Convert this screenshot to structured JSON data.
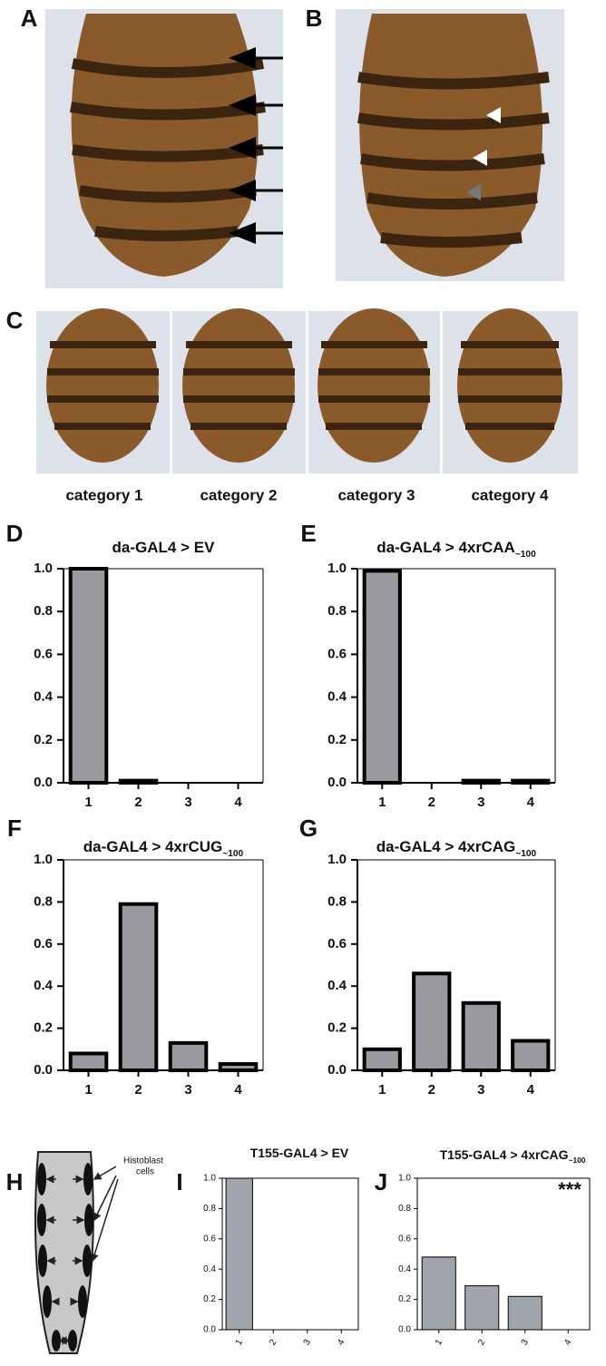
{
  "panel_labels": [
    "A",
    "B",
    "C",
    "D",
    "E",
    "F",
    "G",
    "H",
    "I",
    "J"
  ],
  "photo_captions": [
    "category 1",
    "category 2",
    "category 3",
    "category 4"
  ],
  "diagram_label": [
    "Histoblast",
    "cells"
  ],
  "chart_data": [
    {
      "type": "bar",
      "title": "da-GAL4 > EV",
      "categories": [
        "1",
        "2",
        "3",
        "4"
      ],
      "values": [
        1.0,
        0.01,
        0,
        0
      ],
      "color": "#999aa0",
      "ylim": [
        0,
        1
      ],
      "yticks": [
        {
          "value": 0,
          "label": "0.0"
        },
        0.2,
        0.4,
        0.6,
        0.8,
        {
          "value": 1,
          "label": "1.0"
        }
      ]
    },
    {
      "type": "bar",
      "title": "da-GAL4 > 4xrCAA",
      "title_subscript": "~100",
      "categories": [
        "1",
        "2",
        "3",
        "4"
      ],
      "values": [
        0.99,
        0,
        0.01,
        0.01
      ],
      "color": "#999aa0",
      "ylim": [
        0,
        1
      ],
      "yticks": [
        {
          "value": 0,
          "label": "0.0"
        },
        0.2,
        0.4,
        0.6,
        0.8,
        {
          "value": 1,
          "label": "1.0"
        }
      ]
    },
    {
      "type": "bar",
      "title": "da-GAL4 > 4xrCUG",
      "title_subscript": "~100",
      "categories": [
        "1",
        "2",
        "3",
        "4"
      ],
      "values": [
        0.08,
        0.79,
        0.13,
        0.03
      ],
      "color": "#999aa0",
      "ylim": [
        0,
        1
      ],
      "yticks": [
        {
          "value": 0,
          "label": "0.0"
        },
        0.2,
        0.4,
        0.6,
        0.8,
        {
          "value": 1,
          "label": "1.0"
        }
      ]
    },
    {
      "type": "bar",
      "title": "da-GAL4 > 4xrCAG",
      "title_subscript": "~100",
      "categories": [
        "1",
        "2",
        "3",
        "4"
      ],
      "values": [
        0.1,
        0.46,
        0.32,
        0.14
      ],
      "color": "#999aa0",
      "ylim": [
        0,
        1
      ],
      "yticks": [
        {
          "value": 0,
          "label": "0.0"
        },
        0.2,
        0.4,
        0.6,
        0.8,
        {
          "value": 1,
          "label": "1.0"
        }
      ]
    },
    {
      "type": "bar",
      "title": "T155-GAL4 > EV",
      "categories": [
        "1",
        "2",
        "3",
        "4"
      ],
      "values": [
        1.0,
        0,
        0,
        0
      ],
      "color": "#a0a4ab",
      "ylim": [
        0,
        1
      ],
      "yticks": [
        {
          "value": 0,
          "label": "0.0"
        },
        0.2,
        0.4,
        0.6,
        0.8,
        {
          "value": 1,
          "label": "1.0"
        }
      ]
    },
    {
      "type": "bar",
      "title": "T155-GAL4 > 4xrCAG",
      "title_subscript": "~100",
      "annotation": "***",
      "categories": [
        "1",
        "2",
        "3",
        "4"
      ],
      "values": [
        0.48,
        0.29,
        0.22,
        0
      ],
      "color": "#a0a4ab",
      "ylim": [
        0,
        1
      ],
      "yticks": [
        {
          "value": 0,
          "label": "0.0"
        },
        0.2,
        0.4,
        0.6,
        0.8,
        {
          "value": 1,
          "label": "1.0"
        }
      ]
    }
  ]
}
